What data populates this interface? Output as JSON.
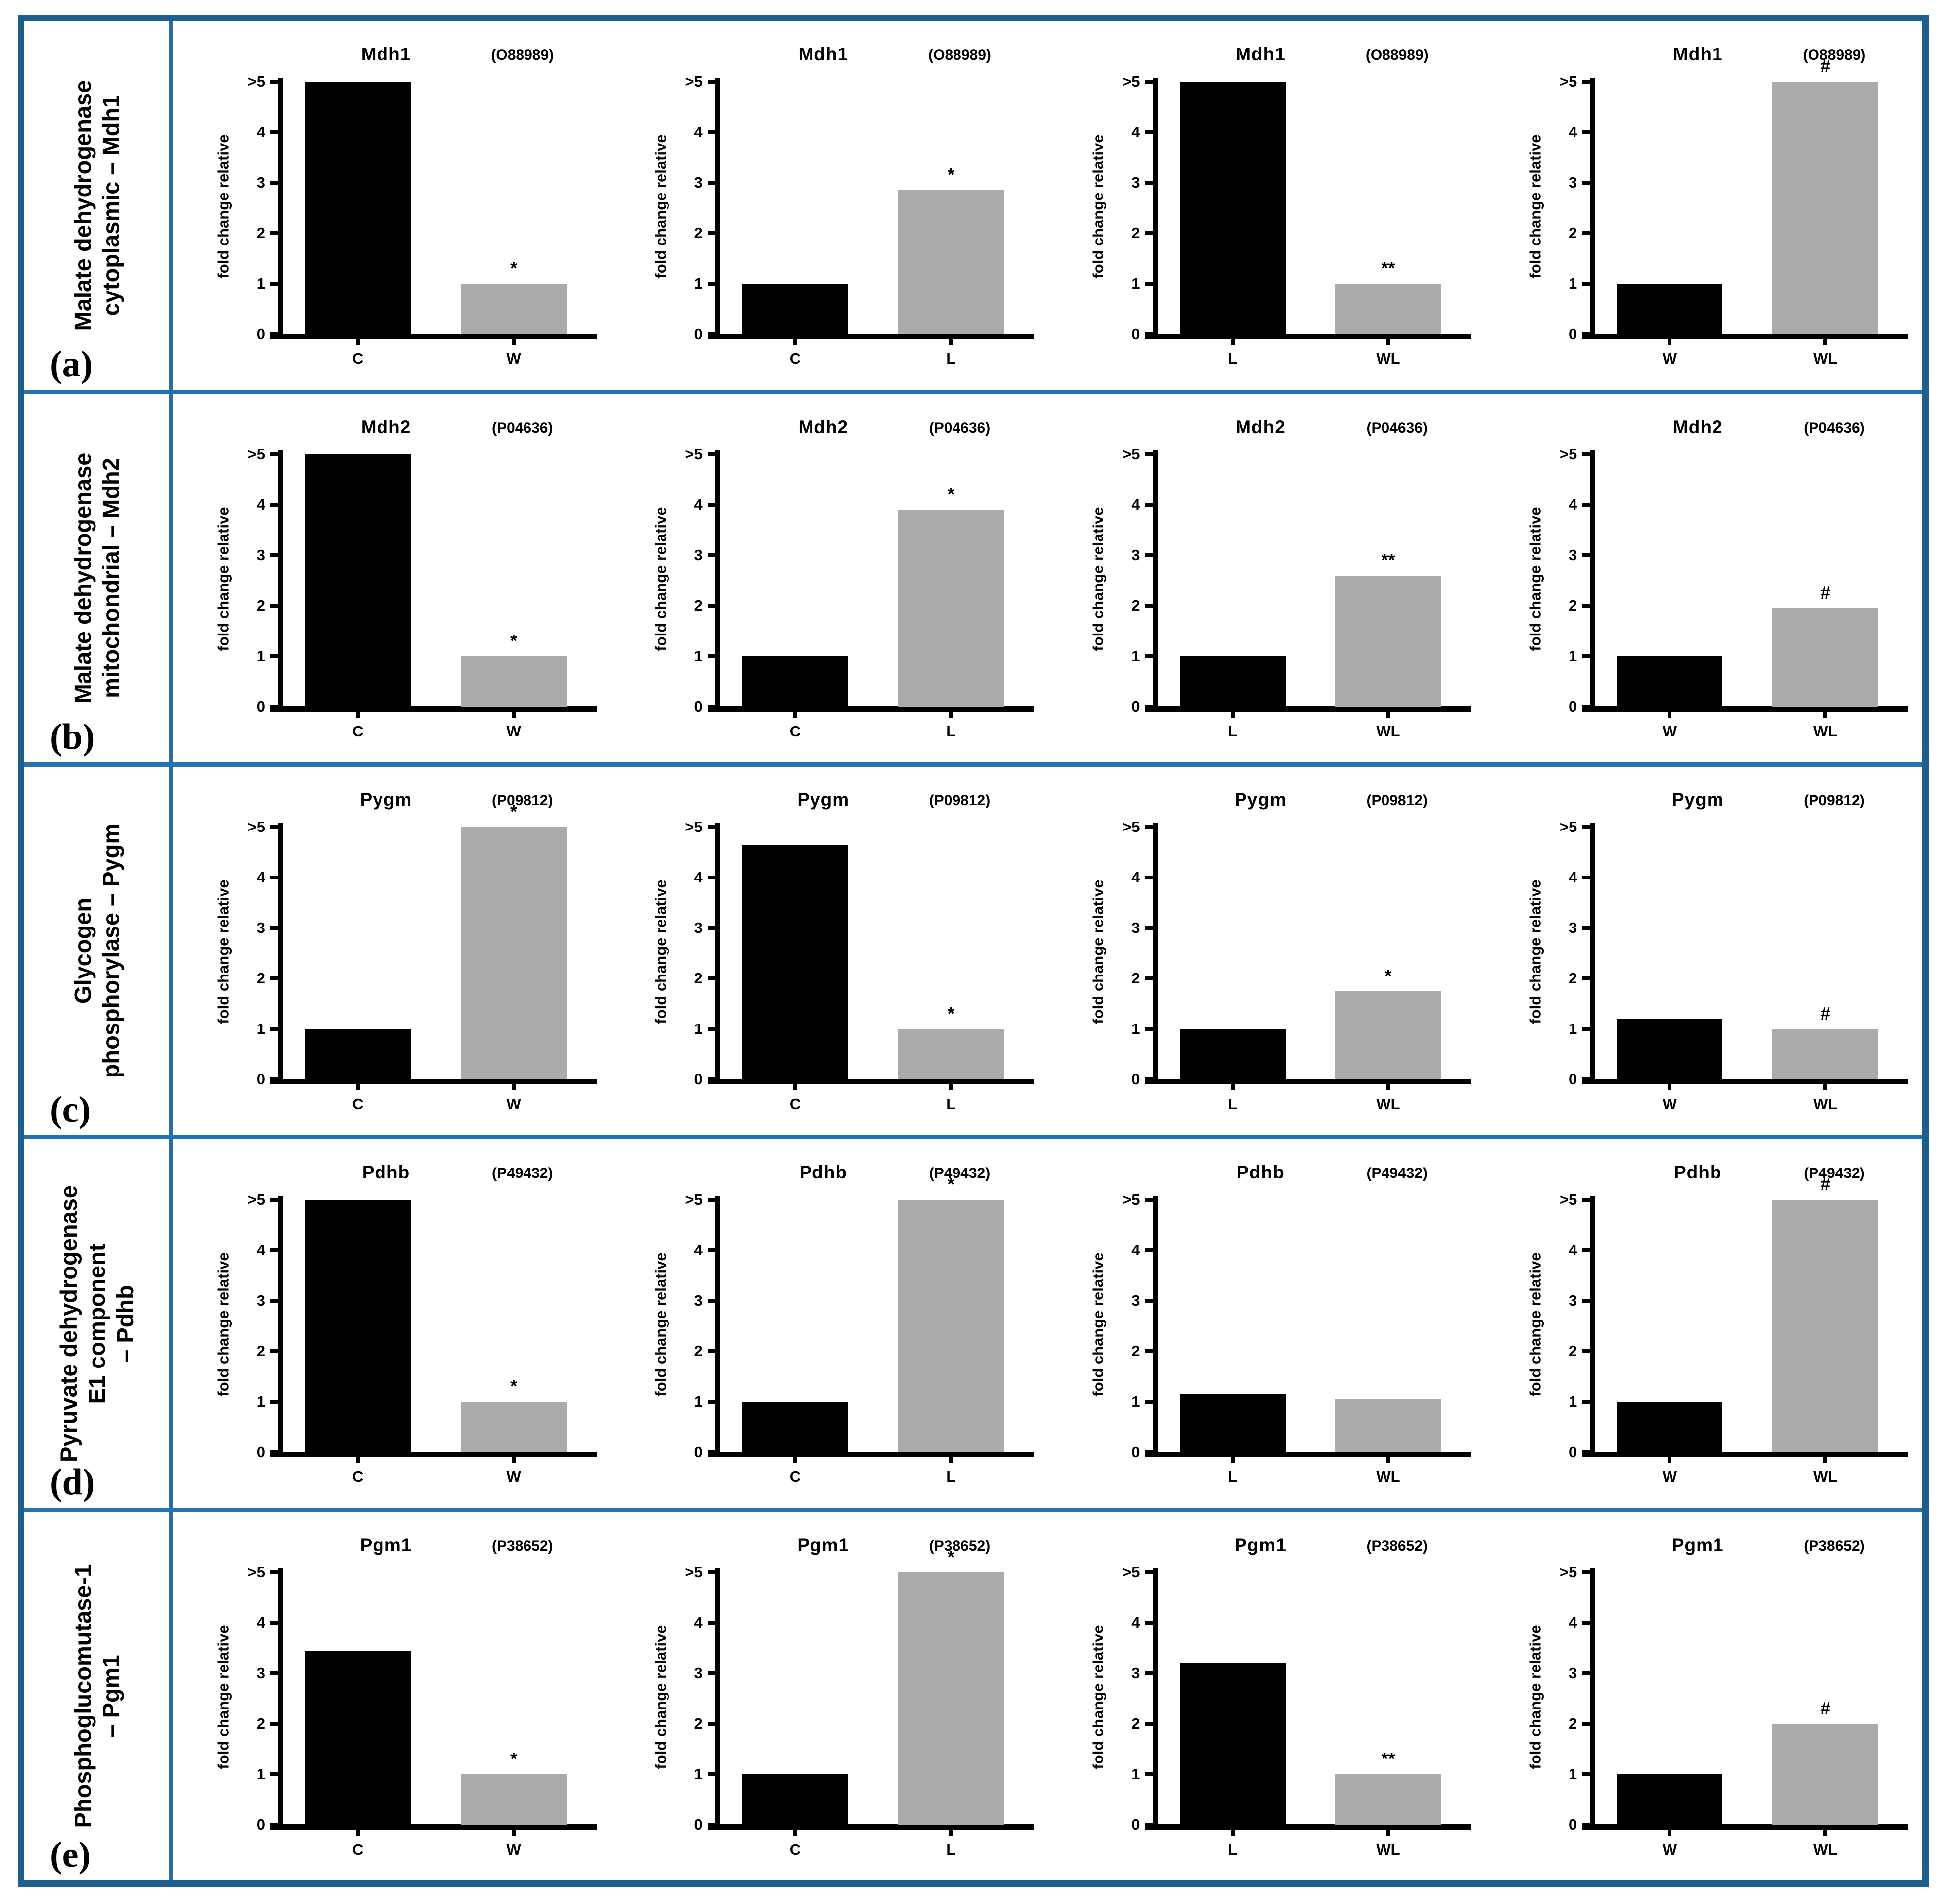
{
  "figure": {
    "colors": {
      "border": "#1d6090",
      "divider": "#2472b0",
      "bar_first": "#000000",
      "bar_second": "#ababab",
      "axis": "#000000"
    }
  },
  "axis": {
    "ylabel": "fold change relative",
    "yticks": [
      ">5",
      "4",
      "3",
      "2",
      "1",
      "0"
    ],
    "ymin": 0,
    "ymax": 5
  },
  "rows": [
    {
      "panel": "(a)",
      "label_lines": [
        "Malate dehydrogenase",
        "cytoplasmic – Mdh1"
      ]
    },
    {
      "panel": "(b)",
      "label_lines": [
        "Malate dehydrogenase",
        "mitochondrial – Mdh2"
      ]
    },
    {
      "panel": "(c)",
      "label_lines": [
        "Glycogen",
        "phosphorylase – Pygm"
      ]
    },
    {
      "panel": "(d)",
      "label_lines": [
        "Pyruvate dehydrogenase",
        "E1 component",
        "– Pdhb"
      ]
    },
    {
      "panel": "(e)",
      "label_lines": [
        "Phosphoglucomutase-1",
        "– Pgm1"
      ]
    }
  ],
  "chart_data": [
    {
      "type": "bar",
      "panel": "a",
      "title": "Mdh1",
      "accession": "(O88989)",
      "ylabel": "fold change relative",
      "ylim": [
        0,
        5
      ],
      "categories": [
        "C",
        "W"
      ],
      "values": [
        5,
        1
      ],
      "display_values": [
        ">5",
        "1"
      ],
      "significance": "*",
      "significance_over": "W"
    },
    {
      "type": "bar",
      "panel": "a",
      "title": "Mdh1",
      "accession": "(O88989)",
      "ylabel": "fold change relative",
      "ylim": [
        0,
        5
      ],
      "categories": [
        "C",
        "L"
      ],
      "values": [
        1,
        2.85
      ],
      "display_values": [
        "1",
        "2.85"
      ],
      "significance": "*",
      "significance_over": "L"
    },
    {
      "type": "bar",
      "panel": "a",
      "title": "Mdh1",
      "accession": "(O88989)",
      "ylabel": "fold change relative",
      "ylim": [
        0,
        5
      ],
      "categories": [
        "L",
        "WL"
      ],
      "values": [
        5,
        1
      ],
      "display_values": [
        ">5",
        "1"
      ],
      "significance": "**",
      "significance_over": "WL"
    },
    {
      "type": "bar",
      "panel": "a",
      "title": "Mdh1",
      "accession": "(O88989)",
      "ylabel": "fold change relative",
      "ylim": [
        0,
        5
      ],
      "categories": [
        "W",
        "WL"
      ],
      "values": [
        1,
        5
      ],
      "display_values": [
        "1",
        ">5"
      ],
      "significance": "#",
      "significance_over": "WL"
    },
    {
      "type": "bar",
      "panel": "b",
      "title": "Mdh2",
      "accession": "(P04636)",
      "ylabel": "fold change relative",
      "ylim": [
        0,
        5
      ],
      "categories": [
        "C",
        "W"
      ],
      "values": [
        5,
        1
      ],
      "display_values": [
        ">5",
        "1"
      ],
      "significance": "*",
      "significance_over": "W"
    },
    {
      "type": "bar",
      "panel": "b",
      "title": "Mdh2",
      "accession": "(P04636)",
      "ylabel": "fold change relative",
      "ylim": [
        0,
        5
      ],
      "categories": [
        "C",
        "L"
      ],
      "values": [
        1,
        3.9
      ],
      "display_values": [
        "1",
        "3.9"
      ],
      "significance": "*",
      "significance_over": "L"
    },
    {
      "type": "bar",
      "panel": "b",
      "title": "Mdh2",
      "accession": "(P04636)",
      "ylabel": "fold change relative",
      "ylim": [
        0,
        5
      ],
      "categories": [
        "L",
        "WL"
      ],
      "values": [
        1,
        2.6
      ],
      "display_values": [
        "1",
        "2.6"
      ],
      "significance": "**",
      "significance_over": "WL"
    },
    {
      "type": "bar",
      "panel": "b",
      "title": "Mdh2",
      "accession": "(P04636)",
      "ylabel": "fold change relative",
      "ylim": [
        0,
        5
      ],
      "categories": [
        "W",
        "WL"
      ],
      "values": [
        1,
        1.95
      ],
      "display_values": [
        "1",
        "1.95"
      ],
      "significance": "#",
      "significance_over": "WL"
    },
    {
      "type": "bar",
      "panel": "c",
      "title": "Pygm",
      "accession": "(P09812)",
      "ylabel": "fold change relative",
      "ylim": [
        0,
        5
      ],
      "categories": [
        "C",
        "W"
      ],
      "values": [
        1,
        5
      ],
      "display_values": [
        "1",
        ">5"
      ],
      "significance": "*",
      "significance_over": "W"
    },
    {
      "type": "bar",
      "panel": "c",
      "title": "Pygm",
      "accession": "(P09812)",
      "ylabel": "fold change relative",
      "ylim": [
        0,
        5
      ],
      "categories": [
        "C",
        "L"
      ],
      "values": [
        4.65,
        1
      ],
      "display_values": [
        "4.65",
        "1"
      ],
      "significance": "*",
      "significance_over": "L"
    },
    {
      "type": "bar",
      "panel": "c",
      "title": "Pygm",
      "accession": "(P09812)",
      "ylabel": "fold change relative",
      "ylim": [
        0,
        5
      ],
      "categories": [
        "L",
        "WL"
      ],
      "values": [
        1,
        1.75
      ],
      "display_values": [
        "1",
        "1.75"
      ],
      "significance": "*",
      "significance_over": "WL"
    },
    {
      "type": "bar",
      "panel": "c",
      "title": "Pygm",
      "accession": "(P09812)",
      "ylabel": "fold change relative",
      "ylim": [
        0,
        5
      ],
      "categories": [
        "W",
        "WL"
      ],
      "values": [
        1.2,
        1
      ],
      "display_values": [
        "1.2",
        "1"
      ],
      "significance": "#",
      "significance_over": "WL"
    },
    {
      "type": "bar",
      "panel": "d",
      "title": "Pdhb",
      "accession": "(P49432)",
      "ylabel": "fold change relative",
      "ylim": [
        0,
        5
      ],
      "categories": [
        "C",
        "W"
      ],
      "values": [
        5,
        1
      ],
      "display_values": [
        ">5",
        "1"
      ],
      "significance": "*",
      "significance_over": "W"
    },
    {
      "type": "bar",
      "panel": "d",
      "title": "Pdhb",
      "accession": "(P49432)",
      "ylabel": "fold change relative",
      "ylim": [
        0,
        5
      ],
      "categories": [
        "C",
        "L"
      ],
      "values": [
        1,
        5
      ],
      "display_values": [
        "1",
        ">5"
      ],
      "significance": "*",
      "significance_over": "L"
    },
    {
      "type": "bar",
      "panel": "d",
      "title": "Pdhb",
      "accession": "(P49432)",
      "ylabel": "fold change relative",
      "ylim": [
        0,
        5
      ],
      "categories": [
        "L",
        "WL"
      ],
      "values": [
        1.15,
        1.05
      ],
      "display_values": [
        "1.15",
        "1.05"
      ],
      "significance": null,
      "significance_over": null
    },
    {
      "type": "bar",
      "panel": "d",
      "title": "Pdhb",
      "accession": "(P49432)",
      "ylabel": "fold change relative",
      "ylim": [
        0,
        5
      ],
      "categories": [
        "W",
        "WL"
      ],
      "values": [
        1,
        5
      ],
      "display_values": [
        "1",
        ">5"
      ],
      "significance": "#",
      "significance_over": "WL"
    },
    {
      "type": "bar",
      "panel": "e",
      "title": "Pgm1",
      "accession": "(P38652)",
      "ylabel": "fold change relative",
      "ylim": [
        0,
        5
      ],
      "categories": [
        "C",
        "W"
      ],
      "values": [
        3.45,
        1
      ],
      "display_values": [
        "3.45",
        "1"
      ],
      "significance": "*",
      "significance_over": "W"
    },
    {
      "type": "bar",
      "panel": "e",
      "title": "Pgm1",
      "accession": "(P38652)",
      "ylabel": "fold change relative",
      "ylim": [
        0,
        5
      ],
      "categories": [
        "C",
        "L"
      ],
      "values": [
        1,
        5
      ],
      "display_values": [
        "1",
        ">5"
      ],
      "significance": "*",
      "significance_over": "L"
    },
    {
      "type": "bar",
      "panel": "e",
      "title": "Pgm1",
      "accession": "(P38652)",
      "ylabel": "fold change relative",
      "ylim": [
        0,
        5
      ],
      "categories": [
        "L",
        "WL"
      ],
      "values": [
        3.2,
        1
      ],
      "display_values": [
        "3.2",
        "1"
      ],
      "significance": "**",
      "significance_over": "WL"
    },
    {
      "type": "bar",
      "panel": "e",
      "title": "Pgm1",
      "accession": "(P38652)",
      "ylabel": "fold change relative",
      "ylim": [
        0,
        5
      ],
      "categories": [
        "W",
        "WL"
      ],
      "values": [
        1,
        2
      ],
      "display_values": [
        "1",
        "2"
      ],
      "significance": "#",
      "significance_over": "WL"
    }
  ]
}
